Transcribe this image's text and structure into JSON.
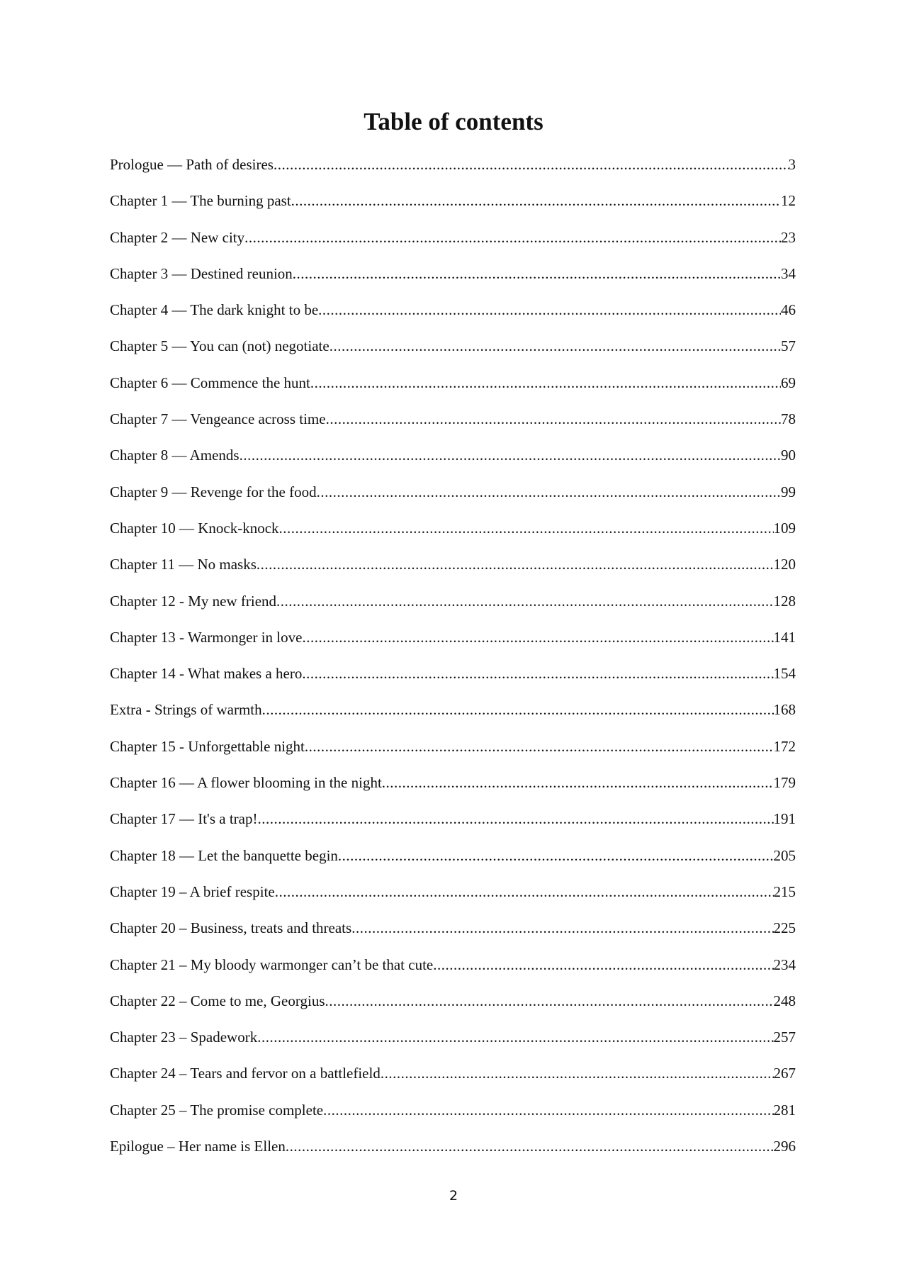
{
  "title": "Table of contents",
  "entries": [
    {
      "label": "Prologue — Path of desires",
      "page": "3"
    },
    {
      "label": "Chapter 1 — The burning past",
      "page": "12"
    },
    {
      "label": "Chapter 2 — New city",
      "page": "23"
    },
    {
      "label": "Chapter 3 — Destined reunion",
      "page": "34"
    },
    {
      "label": "Chapter 4 — The dark knight to be",
      "page": "46"
    },
    {
      "label": "Chapter 5 — You can (not) negotiate",
      "page": "57"
    },
    {
      "label": "Chapter 6 — Commence the hunt",
      "page": "69"
    },
    {
      "label": "Chapter 7 — Vengeance across time",
      "page": "78"
    },
    {
      "label": "Chapter 8 — Amends",
      "page": "90"
    },
    {
      "label": "Chapter 9 — Revenge for the food",
      "page": "99"
    },
    {
      "label": "Chapter 10 — Knock-knock",
      "page": "109"
    },
    {
      "label": "Chapter 11 — No masks",
      "page": "120"
    },
    {
      "label": "Chapter 12 - My new friend",
      "page": "128"
    },
    {
      "label": "Chapter 13 - Warmonger in love",
      "page": "141"
    },
    {
      "label": "Chapter 14 - What makes a hero",
      "page": "154"
    },
    {
      "label": "Extra - Strings of warmth",
      "page": "168"
    },
    {
      "label": "Chapter 15 - Unforgettable night",
      "page": "172"
    },
    {
      "label": "Chapter 16 — A flower blooming in the night",
      "page": "179"
    },
    {
      "label": "Chapter 17 — It's a trap!",
      "page": "191"
    },
    {
      "label": "Chapter 18 — Let the banquette begin",
      "page": "205"
    },
    {
      "label": "Chapter 19 – A brief respite",
      "page": "215"
    },
    {
      "label": "Chapter 20 – Business, treats and threats",
      "page": "225"
    },
    {
      "label": "Chapter 21 – My bloody warmonger can’t be that cute",
      "page": "234"
    },
    {
      "label": "Chapter 22 – Come to me, Georgius",
      "page": "248"
    },
    {
      "label": "Chapter 23 – Spadework",
      "page": "257"
    },
    {
      "label": "Chapter 24 – Tears and fervor on a battlefield",
      "page": "267"
    },
    {
      "label": "Chapter 25 – The promise complete",
      "page": "281"
    },
    {
      "label": "Epilogue – Her name is Ellen",
      "page": "296"
    }
  ],
  "page_number": "2"
}
